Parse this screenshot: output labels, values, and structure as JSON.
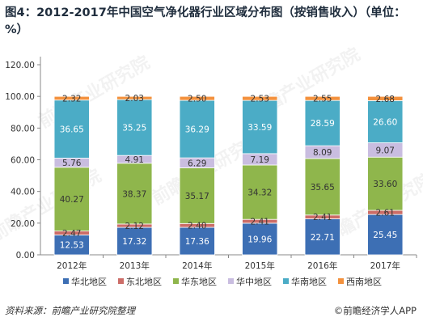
{
  "title": "图4：2012-2017年中国空气净化器行业区域分布图（按销售收入）（单位：%）",
  "source": "资料来源：前瞻产业研究院整理",
  "credit": "前瞻经济学人APP",
  "watermark": "前瞻产业研究院",
  "colors": {
    "华北地区": "#3d6fb4",
    "东北地区": "#cc6d68",
    "华东地区": "#8fb64c",
    "华中地区": "#c9bde0",
    "华南地区": "#4bacc6",
    "西南地区": "#f3913d"
  },
  "chart_data": {
    "type": "bar",
    "stacked": true,
    "categories": [
      "2012年",
      "2013年",
      "2014年",
      "2015年",
      "2016年",
      "2017年"
    ],
    "series": [
      {
        "name": "华北地区",
        "values": [
          12.53,
          17.32,
          17.36,
          19.96,
          22.71,
          25.45
        ]
      },
      {
        "name": "东北地区",
        "values": [
          2.47,
          2.12,
          2.4,
          2.41,
          2.41,
          2.61
        ]
      },
      {
        "name": "华东地区",
        "values": [
          40.27,
          38.37,
          35.17,
          34.32,
          35.65,
          33.6
        ]
      },
      {
        "name": "华中地区",
        "values": [
          5.76,
          4.91,
          6.29,
          7.19,
          8.09,
          9.07
        ]
      },
      {
        "name": "华南地区",
        "values": [
          36.65,
          35.25,
          36.29,
          33.59,
          28.59,
          26.6
        ]
      },
      {
        "name": "西南地区",
        "values": [
          2.32,
          2.03,
          2.5,
          2.53,
          2.55,
          2.68
        ]
      }
    ],
    "ylim": [
      0,
      120
    ],
    "yticks": [
      "0.00",
      "20.00",
      "40.00",
      "60.00",
      "80.00",
      "100.00",
      "120.00"
    ],
    "grid": false,
    "legend": "bottom"
  }
}
